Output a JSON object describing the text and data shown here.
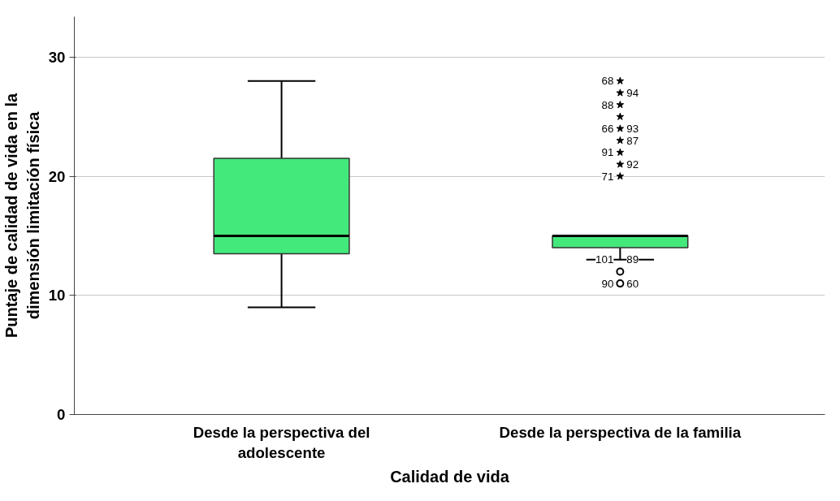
{
  "chart_data": {
    "type": "box",
    "xlabel": "Calidad de vida",
    "ylabel": "Puntaje de calidad de vida en la\ndimensión limitación física",
    "categories": [
      "Desde la perspectiva del\nadolescente",
      "Desde la perspectiva de la familia"
    ],
    "ylim": [
      0,
      33.4
    ],
    "yticks": [
      0,
      10,
      20,
      30
    ],
    "grid": "y",
    "series": [
      {
        "color": "#43e97b",
        "boxes": [
          {
            "low": 9,
            "q1": 13.5,
            "median": 15,
            "q3": 21.5,
            "high": 28
          },
          {
            "low": 13,
            "q1": 14,
            "median": 15,
            "q3": 15,
            "high": 15
          }
        ]
      },
      {
        "type": "scatter",
        "marker": "circle",
        "color": "#000000",
        "x": [
          "Desde la perspectiva de la familia",
          "Desde la perspectiva de la familia"
        ],
        "values": [
          12,
          11
        ]
      },
      {
        "type": "scatter",
        "marker": "star",
        "color": "#000000",
        "x": [
          "Desde la perspectiva de la familia",
          "Desde la perspectiva de la familia",
          "Desde la perspectiva de la familia",
          "Desde la perspectiva de la familia",
          "Desde la perspectiva de la familia",
          "Desde la perspectiva de la familia",
          "Desde la perspectiva de la familia",
          "Desde la perspectiva de la familia",
          "Desde la perspectiva de la familia"
        ],
        "values": [
          28,
          27,
          26,
          25,
          24,
          23,
          22,
          21,
          20
        ]
      }
    ],
    "annotations": [
      {
        "text": "68",
        "x": "Desde la perspectiva de la familia",
        "y": 28
      },
      {
        "text": "94",
        "x": "Desde la perspectiva de la familia",
        "y": 27
      },
      {
        "text": "88",
        "x": "Desde la perspectiva de la familia",
        "y": 26
      },
      {
        "text": "66",
        "x": "Desde la perspectiva de la familia",
        "y": 24
      },
      {
        "text": "93",
        "x": "Desde la perspectiva de la familia",
        "y": 24
      },
      {
        "text": "87",
        "x": "Desde la perspectiva de la familia",
        "y": 23
      },
      {
        "text": "91",
        "x": "Desde la perspectiva de la familia",
        "y": 22
      },
      {
        "text": "92",
        "x": "Desde la perspectiva de la familia",
        "y": 21
      },
      {
        "text": "71",
        "x": "Desde la perspectiva de la familia",
        "y": 20
      },
      {
        "text": "101",
        "x": "Desde la perspectiva de la familia",
        "y": 13
      },
      {
        "text": "89",
        "x": "Desde la perspectiva de la familia",
        "y": 13
      },
      {
        "text": "90",
        "x": "Desde la perspectiva de la familia",
        "y": 11
      },
      {
        "text": "60",
        "x": "Desde la perspectiva de la familia",
        "y": 11
      }
    ]
  }
}
